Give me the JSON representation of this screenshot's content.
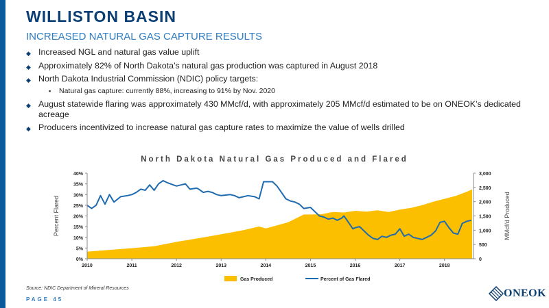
{
  "header": {
    "title": "WILLISTON BASIN",
    "subtitle": "INCREASED NATURAL GAS CAPTURE RESULTS"
  },
  "bullets": [
    "Increased NGL and natural gas value uplift",
    "Approximately 82% of North Dakota’s natural gas production was captured in August 2018",
    "North Dakota Industrial Commission (NDIC) policy targets:",
    "August statewide flaring was approximately 430 MMcf/d, with approximately 205 MMcf/d estimated to be on ONEOK’s dedicated acreage",
    "Producers incentivized to increase natural gas capture rates to maximize the value of wells drilled"
  ],
  "sub_bullet": "Natural gas capture: currently 88%, increasing to 91% by Nov. 2020",
  "footer": {
    "source": "Source: NDIC Department of Mineral Resources",
    "page": "PAGE 45",
    "logo_text": "ONEOK"
  },
  "colors": {
    "accent": "#0a5a9c",
    "title": "#0b3f73",
    "gas_fill": "#fcbf00",
    "flare_line": "#1f6bb0"
  },
  "chart_data": {
    "type": "area",
    "title": "North Dakota Natural Gas Produced and Flared",
    "ylabel_left": "Percent Flared",
    "ylabel_right": "MMcf/d Produced",
    "x_ticks": [
      "2010",
      "2011",
      "2012",
      "2013",
      "2014",
      "2015",
      "2016",
      "2017",
      "2018"
    ],
    "y_left_ticks": [
      "0%",
      "5%",
      "10%",
      "15%",
      "20%",
      "25%",
      "30%",
      "35%",
      "40%"
    ],
    "y_right_ticks": [
      "0",
      "500",
      "1,000",
      "1,500",
      "2,000",
      "2,500",
      "3,000"
    ],
    "ylim_left": [
      0,
      40
    ],
    "ylim_right": [
      0,
      3000
    ],
    "xlim": [
      2010,
      2018.65
    ],
    "legend_position": "bottom",
    "grid": false,
    "series": [
      {
        "name": "Gas Produced",
        "kind": "area",
        "axis": "right",
        "x": [
          2010,
          2010.5,
          2011,
          2011.5,
          2012,
          2012.5,
          2013,
          2013.5,
          2013.85,
          2014,
          2014.5,
          2014.85,
          2015,
          2015.25,
          2015.5,
          2015.75,
          2016,
          2016.25,
          2016.5,
          2016.75,
          2017,
          2017.25,
          2017.5,
          2017.75,
          2018,
          2018.25,
          2018.5,
          2018.62
        ],
        "values": [
          250,
          310,
          370,
          440,
          590,
          720,
          860,
          1000,
          1130,
          1060,
          1280,
          1550,
          1550,
          1560,
          1640,
          1620,
          1680,
          1650,
          1700,
          1640,
          1720,
          1780,
          1880,
          2000,
          2100,
          2200,
          2350,
          2430
        ]
      },
      {
        "name": "Percent of Gas Flared",
        "kind": "line",
        "axis": "left",
        "x": [
          2010,
          2010.1,
          2010.2,
          2010.3,
          2010.4,
          2010.5,
          2010.6,
          2010.75,
          2010.9,
          2011,
          2011.1,
          2011.2,
          2011.3,
          2011.4,
          2011.5,
          2011.6,
          2011.7,
          2011.8,
          2012,
          2012.1,
          2012.2,
          2012.3,
          2012.45,
          2012.5,
          2012.6,
          2012.7,
          2012.8,
          2012.9,
          2013,
          2013.2,
          2013.3,
          2013.4,
          2013.5,
          2013.6,
          2013.75,
          2013.85,
          2013.95,
          2014.05,
          2014.15,
          2014.25,
          2014.35,
          2014.45,
          2014.55,
          2014.65,
          2014.75,
          2014.85,
          2015,
          2015.1,
          2015.2,
          2015.3,
          2015.4,
          2015.5,
          2015.6,
          2015.7,
          2015.75,
          2015.85,
          2015.95,
          2016,
          2016.1,
          2016.2,
          2016.3,
          2016.4,
          2016.5,
          2016.6,
          2016.7,
          2016.8,
          2016.9,
          2017,
          2017.1,
          2017.2,
          2017.3,
          2017.4,
          2017.5,
          2017.6,
          2017.7,
          2017.8,
          2017.9,
          2018,
          2018.1,
          2018.2,
          2018.3,
          2018.4,
          2018.5,
          2018.6
        ],
        "values": [
          25,
          23.5,
          25,
          29.5,
          25.5,
          30,
          26.5,
          29,
          29.5,
          30,
          31,
          32.5,
          32,
          34.5,
          32,
          35,
          36.5,
          35.5,
          34,
          34.5,
          35,
          32.5,
          33,
          32.5,
          31,
          31.5,
          31,
          30,
          29.5,
          30,
          29.5,
          28.5,
          29,
          29.5,
          29,
          28,
          36,
          36,
          36,
          34,
          31,
          28,
          27,
          26.5,
          25.5,
          23.5,
          24,
          22,
          20,
          19.5,
          18.5,
          19,
          18,
          19,
          20,
          17,
          14,
          14.5,
          15,
          13,
          11,
          9.5,
          9,
          10.5,
          10,
          11,
          11.5,
          14,
          10.5,
          11.5,
          10,
          9.5,
          9,
          10,
          11,
          13,
          17,
          17.5,
          14.5,
          12,
          11.5,
          16.5,
          17.5,
          18
        ]
      }
    ]
  }
}
